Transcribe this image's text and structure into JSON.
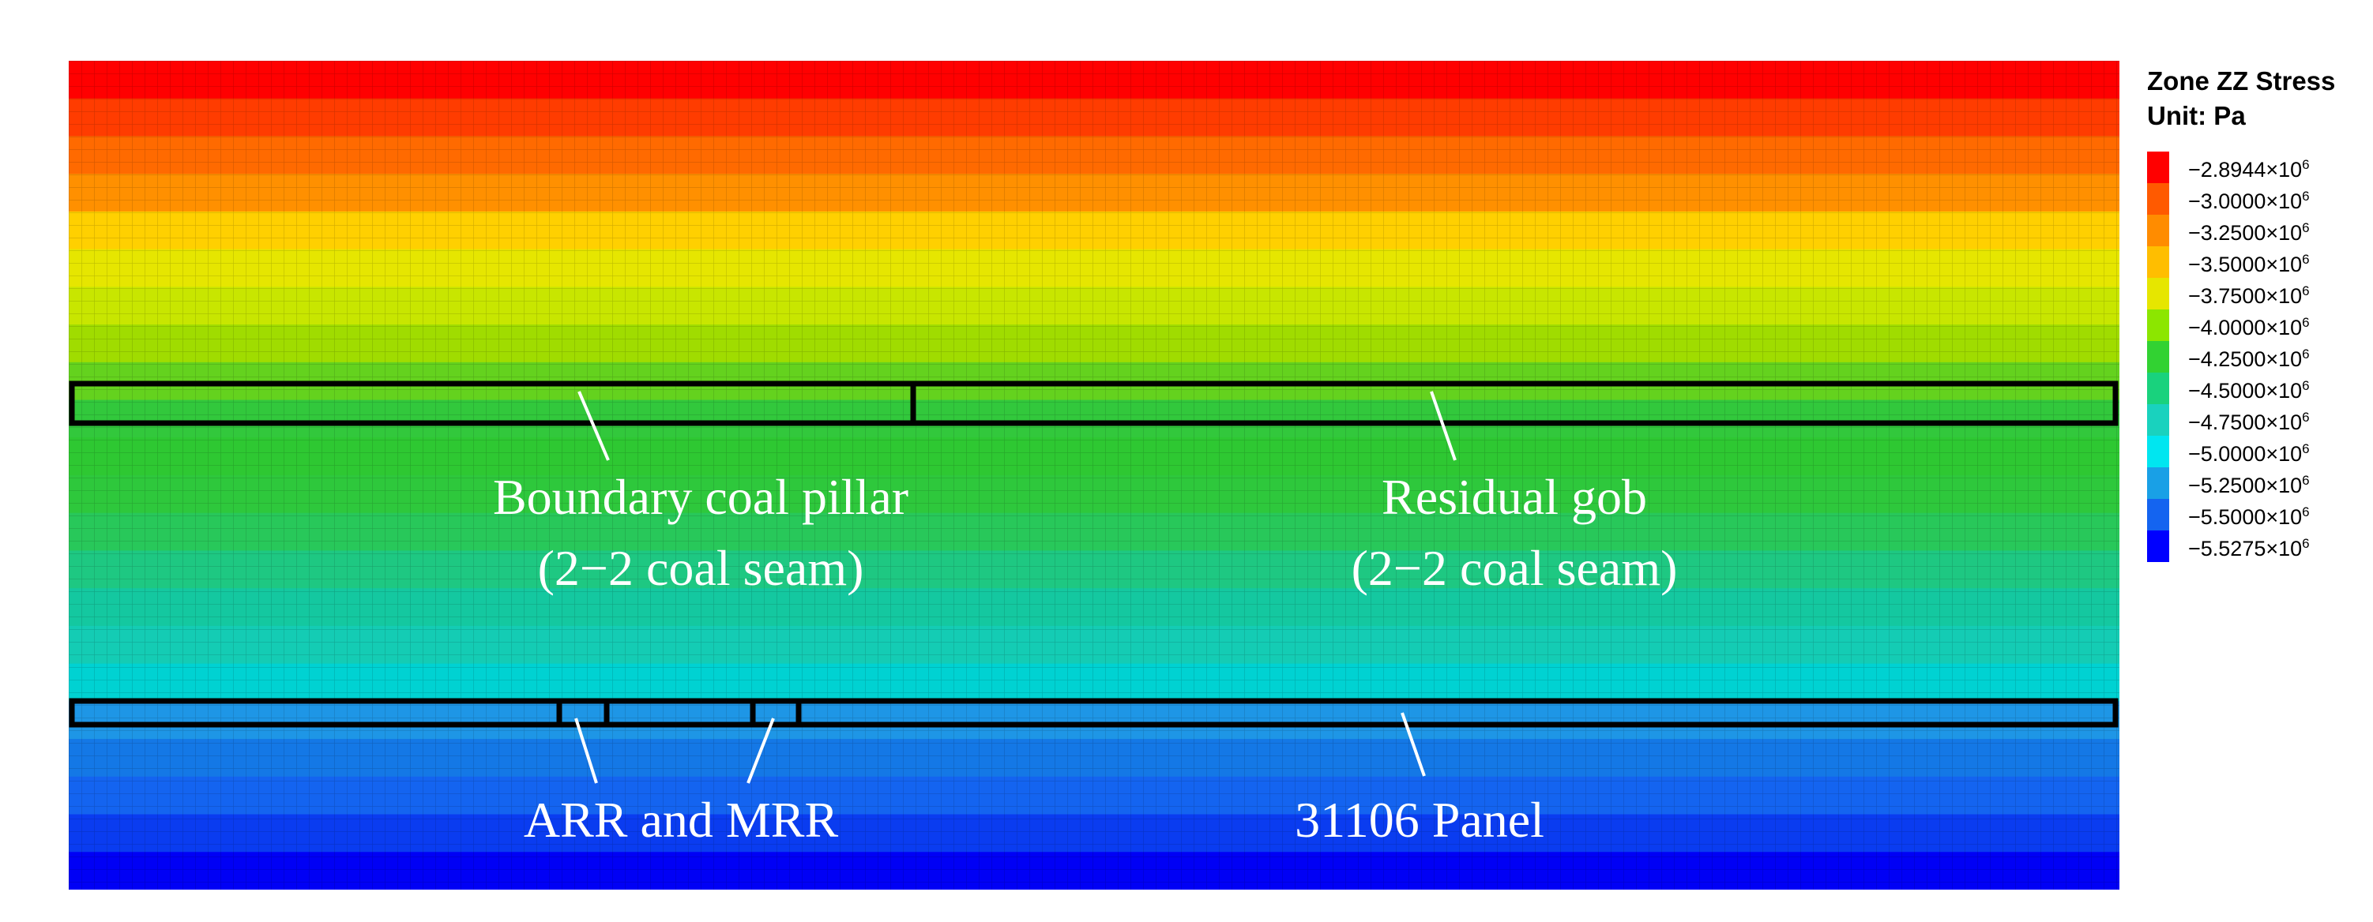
{
  "legend": {
    "title": "Zone ZZ Stress",
    "unit": "Unit: Pa",
    "entries": [
      {
        "label": "−2.8944×10",
        "exp": "6",
        "color": "#ff0000"
      },
      {
        "label": "−3.0000×10",
        "exp": "6",
        "color": "#ff5a00"
      },
      {
        "label": "−3.2500×10",
        "exp": "6",
        "color": "#ff8c00"
      },
      {
        "label": "−3.5000×10",
        "exp": "6",
        "color": "#ffbe00"
      },
      {
        "label": "−3.7500×10",
        "exp": "6",
        "color": "#e6e600"
      },
      {
        "label": "−4.0000×10",
        "exp": "6",
        "color": "#8ce600"
      },
      {
        "label": "−4.2500×10",
        "exp": "6",
        "color": "#32d232"
      },
      {
        "label": "−4.5000×10",
        "exp": "6",
        "color": "#19d27d"
      },
      {
        "label": "−4.7500×10",
        "exp": "6",
        "color": "#19d2be"
      },
      {
        "label": "−5.0000×10",
        "exp": "6",
        "color": "#00e6f0"
      },
      {
        "label": "−5.2500×10",
        "exp": "6",
        "color": "#19a0e6"
      },
      {
        "label": "−5.5000×10",
        "exp": "6",
        "color": "#1464f0"
      },
      {
        "label": "−5.5275×10",
        "exp": "6",
        "color": "#0000ff"
      }
    ]
  },
  "contour_bands": [
    "#ff0000",
    "#ff3c00",
    "#ff6a00",
    "#ff9000",
    "#ffd000",
    "#e6e600",
    "#c8e600",
    "#a0dc00",
    "#64d21e",
    "#32c83c",
    "#2ec832",
    "#2ec83c",
    "#28c85a",
    "#1ec882",
    "#14c8a0",
    "#14ccb4",
    "#00d2d2",
    "#1e96e6",
    "#1478e6",
    "#1464f0",
    "#0a3cf0",
    "#0000f5"
  ],
  "annotations": {
    "boundary_pillar": [
      "Boundary coal pillar",
      "(2−2 coal seam)"
    ],
    "residual_gob": [
      "Residual gob",
      "(2−2 coal seam)"
    ],
    "arr_mrr": [
      "ARR and MRR"
    ],
    "panel": [
      "31106 Panel"
    ]
  }
}
